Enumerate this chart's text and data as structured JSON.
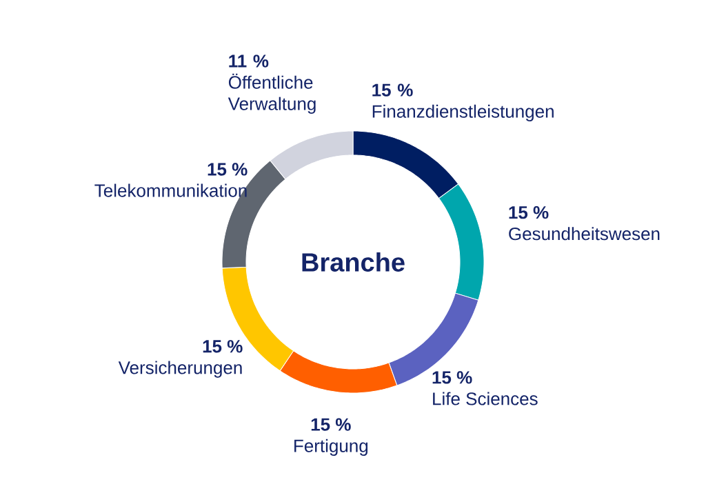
{
  "chart_data": {
    "type": "donut",
    "title": "Branche",
    "categories": [
      "Finanzdienstleistungen",
      "Gesundheitswesen",
      "Life Sciences",
      "Fertigung",
      "Versicherungen",
      "Telekommunikation",
      "Öffentliche Verwaltung"
    ],
    "values": [
      15,
      15,
      15,
      15,
      15,
      15,
      11
    ],
    "value_labels": [
      "15 %",
      "15 %",
      "15 %",
      "15 %",
      "15 %",
      "15 %",
      "11 %"
    ],
    "colors": [
      "#001e62",
      "#00a6ad",
      "#5b62c0",
      "#ff5f00",
      "#ffc600",
      "#5f6670",
      "#d1d3de"
    ]
  }
}
